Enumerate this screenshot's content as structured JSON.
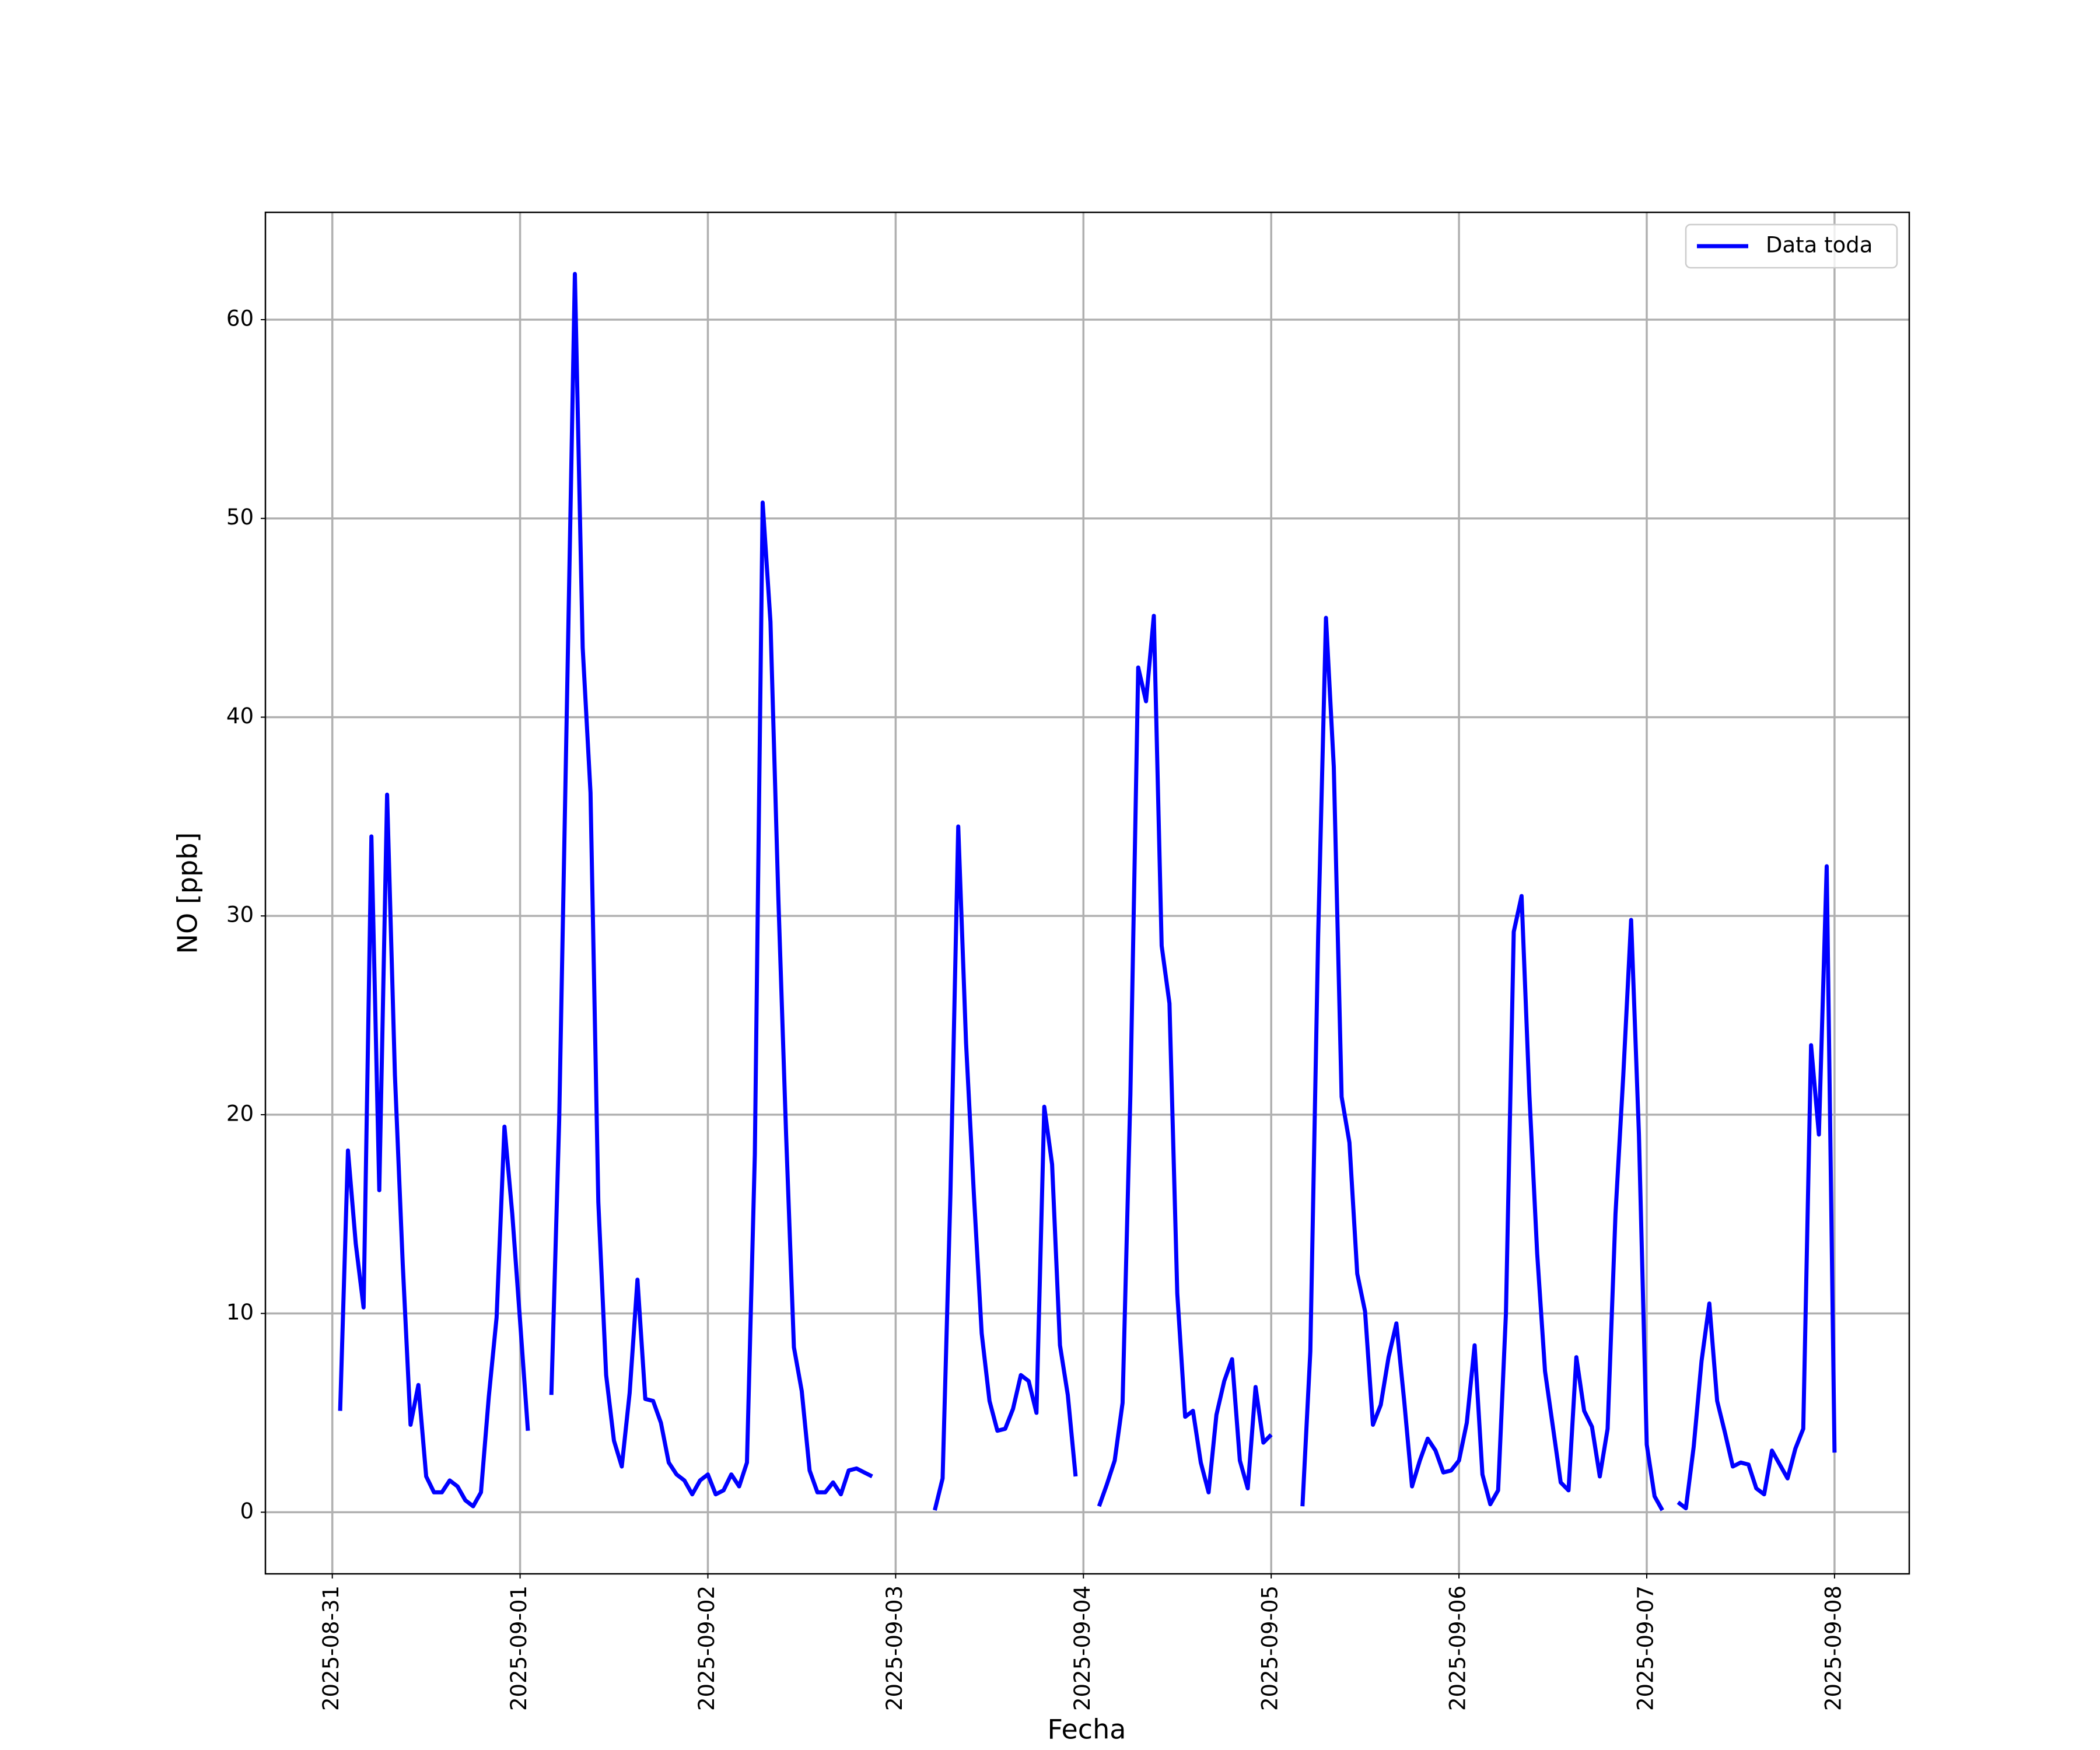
{
  "chart_data": {
    "type": "line",
    "xlabel": "Fecha",
    "ylabel": "NO [ppb]",
    "x": [
      "2025-08-31 01:00",
      "2025-08-31 02:00",
      "2025-08-31 03:00",
      "2025-08-31 04:00",
      "2025-08-31 05:00",
      "2025-08-31 06:00",
      "2025-08-31 07:00",
      "2025-08-31 08:00",
      "2025-08-31 09:00",
      "2025-08-31 10:00",
      "2025-08-31 11:00",
      "2025-08-31 12:00",
      "2025-08-31 13:00",
      "2025-08-31 14:00",
      "2025-08-31 15:00",
      "2025-08-31 16:00",
      "2025-08-31 17:00",
      "2025-08-31 18:00",
      "2025-08-31 19:00",
      "2025-08-31 20:00",
      "2025-08-31 21:00",
      "2025-08-31 22:00",
      "2025-08-31 23:00",
      "2025-09-01 00:00",
      "2025-09-01 01:00",
      "2025-09-01 02:00",
      "2025-09-01 03:00",
      "2025-09-01 04:00",
      "2025-09-01 05:00",
      "2025-09-01 06:00",
      "2025-09-01 07:00",
      "2025-09-01 08:00",
      "2025-09-01 09:00",
      "2025-09-01 10:00",
      "2025-09-01 11:00",
      "2025-09-01 12:00",
      "2025-09-01 13:00",
      "2025-09-01 14:00",
      "2025-09-01 15:00",
      "2025-09-01 16:00",
      "2025-09-01 17:00",
      "2025-09-01 18:00",
      "2025-09-01 19:00",
      "2025-09-01 20:00",
      "2025-09-01 21:00",
      "2025-09-01 22:00",
      "2025-09-01 23:00",
      "2025-09-02 00:00",
      "2025-09-02 01:00",
      "2025-09-02 02:00",
      "2025-09-02 03:00",
      "2025-09-02 04:00",
      "2025-09-02 05:00",
      "2025-09-02 06:00",
      "2025-09-02 07:00",
      "2025-09-02 08:00",
      "2025-09-02 09:00",
      "2025-09-02 10:00",
      "2025-09-02 11:00",
      "2025-09-02 12:00",
      "2025-09-02 13:00",
      "2025-09-02 14:00",
      "2025-09-02 15:00",
      "2025-09-02 16:00",
      "2025-09-02 17:00",
      "2025-09-02 18:00",
      "2025-09-02 19:00",
      "2025-09-02 20:00",
      "2025-09-02 21:00",
      "2025-09-02 22:00",
      "2025-09-02 23:00",
      "2025-09-03 00:00",
      "2025-09-03 01:00",
      "2025-09-03 02:00",
      "2025-09-03 03:00",
      "2025-09-03 04:00",
      "2025-09-03 05:00",
      "2025-09-03 06:00",
      "2025-09-03 07:00",
      "2025-09-03 08:00",
      "2025-09-03 09:00",
      "2025-09-03 10:00",
      "2025-09-03 11:00",
      "2025-09-03 12:00",
      "2025-09-03 13:00",
      "2025-09-03 14:00",
      "2025-09-03 15:00",
      "2025-09-03 16:00",
      "2025-09-03 17:00",
      "2025-09-03 18:00",
      "2025-09-03 19:00",
      "2025-09-03 20:00",
      "2025-09-03 21:00",
      "2025-09-03 22:00",
      "2025-09-03 23:00",
      "2025-09-04 00:00",
      "2025-09-04 01:00",
      "2025-09-04 02:00",
      "2025-09-04 03:00",
      "2025-09-04 04:00",
      "2025-09-04 05:00",
      "2025-09-04 06:00",
      "2025-09-04 07:00",
      "2025-09-04 08:00",
      "2025-09-04 09:00",
      "2025-09-04 10:00",
      "2025-09-04 11:00",
      "2025-09-04 12:00",
      "2025-09-04 13:00",
      "2025-09-04 14:00",
      "2025-09-04 15:00",
      "2025-09-04 16:00",
      "2025-09-04 17:00",
      "2025-09-04 18:00",
      "2025-09-04 19:00",
      "2025-09-04 20:00",
      "2025-09-04 21:00",
      "2025-09-04 22:00",
      "2025-09-04 23:00",
      "2025-09-05 00:00",
      "2025-09-05 01:00",
      "2025-09-05 02:00",
      "2025-09-05 03:00",
      "2025-09-05 04:00",
      "2025-09-05 05:00",
      "2025-09-05 06:00",
      "2025-09-05 07:00",
      "2025-09-05 08:00",
      "2025-09-05 09:00",
      "2025-09-05 10:00",
      "2025-09-05 11:00",
      "2025-09-05 12:00",
      "2025-09-05 13:00",
      "2025-09-05 14:00",
      "2025-09-05 15:00",
      "2025-09-05 16:00",
      "2025-09-05 17:00",
      "2025-09-05 18:00",
      "2025-09-05 19:00",
      "2025-09-05 20:00",
      "2025-09-05 21:00",
      "2025-09-05 22:00",
      "2025-09-05 23:00",
      "2025-09-06 00:00",
      "2025-09-06 01:00",
      "2025-09-06 02:00",
      "2025-09-06 03:00",
      "2025-09-06 04:00",
      "2025-09-06 05:00",
      "2025-09-06 06:00",
      "2025-09-06 07:00",
      "2025-09-06 08:00",
      "2025-09-06 09:00",
      "2025-09-06 10:00",
      "2025-09-06 11:00",
      "2025-09-06 12:00",
      "2025-09-06 13:00",
      "2025-09-06 14:00",
      "2025-09-06 15:00",
      "2025-09-06 16:00",
      "2025-09-06 17:00",
      "2025-09-06 18:00",
      "2025-09-06 19:00",
      "2025-09-06 20:00",
      "2025-09-06 21:00",
      "2025-09-06 22:00",
      "2025-09-06 23:00",
      "2025-09-07 00:00",
      "2025-09-07 01:00",
      "2025-09-07 02:00",
      "2025-09-07 03:00",
      "2025-09-07 04:00",
      "2025-09-07 05:00",
      "2025-09-07 06:00",
      "2025-09-07 07:00",
      "2025-09-07 08:00",
      "2025-09-07 09:00",
      "2025-09-07 10:00",
      "2025-09-07 11:00",
      "2025-09-07 12:00",
      "2025-09-07 13:00",
      "2025-09-07 14:00",
      "2025-09-07 15:00",
      "2025-09-07 16:00",
      "2025-09-07 17:00",
      "2025-09-07 18:00",
      "2025-09-07 19:00",
      "2025-09-07 20:00",
      "2025-09-07 21:00",
      "2025-09-07 22:00",
      "2025-09-07 23:00",
      "2025-09-08 00:00"
    ],
    "series": [
      {
        "name": "Data toda",
        "color": "#0000ff",
        "values": [
          5.1,
          18.2,
          13.5,
          10.3,
          34.0,
          16.2,
          36.1,
          22,
          12.5,
          4.4,
          6.4,
          1.8,
          1.0,
          1.0,
          1.6,
          1.3,
          0.6,
          0.3,
          1.0,
          5.8,
          9.8,
          19.4,
          15.0,
          9.6,
          4.1,
          null,
          null,
          5.9,
          19.7,
          41,
          62.3,
          43.5,
          36.2,
          15.6,
          6.9,
          3.6,
          2.3,
          6.0,
          11.7,
          5.7,
          5.6,
          4.5,
          2.5,
          1.9,
          1.6,
          0.9,
          1.6,
          1.9,
          0.9,
          1.1,
          1.9,
          1.3,
          2.5,
          18,
          50.8,
          44.8,
          31,
          19,
          8.3,
          6.1,
          2.1,
          1.0,
          1.0,
          1.5,
          0.9,
          2.1,
          2.2,
          2.0,
          1.8,
          null,
          null,
          null,
          null,
          null,
          null,
          null,
          0.1,
          1.7,
          16,
          34.5,
          23.6,
          16,
          9.0,
          5.6,
          4.1,
          4.2,
          5.2,
          6.9,
          6.6,
          5.0,
          20.4,
          17.5,
          8.4,
          5.9,
          1.8,
          null,
          null,
          0.3,
          1.4,
          2.6,
          5.5,
          21,
          42.5,
          40.8,
          45.1,
          28.5,
          25.6,
          11,
          4.8,
          5.1,
          2.5,
          1.0,
          4.9,
          6.6,
          7.7,
          2.6,
          1.2,
          6.3,
          3.5,
          3.9,
          null,
          null,
          null,
          0.3,
          8.1,
          29,
          45.0,
          37.5,
          20.9,
          18.6,
          12,
          10.1,
          4.4,
          5.4,
          7.8,
          9.5,
          5.6,
          1.3,
          2.6,
          3.7,
          3.1,
          2.0,
          2.1,
          2.6,
          4.5,
          8.4,
          1.9,
          0.4,
          1.1,
          10,
          29.2,
          31.0,
          21,
          13,
          7.1,
          4.3,
          1.5,
          1.1,
          7.8,
          5.1,
          4.3,
          1.8,
          4.2,
          15,
          22,
          29.8,
          19,
          3.4,
          0.8,
          0.1,
          null,
          0.5,
          0.2,
          3.3,
          7.6,
          10.5,
          5.6,
          4.0,
          2.3,
          2.5,
          2.4,
          1.2,
          0.9,
          3.1,
          2.4,
          1.7,
          3.2,
          4.2,
          23.5,
          19.0,
          32.5,
          3.0
        ]
      }
    ],
    "xlim": [
      "2025-08-30 15:27",
      "2025-09-08 09:33"
    ],
    "xticks": [
      "2025-08-31",
      "2025-09-01",
      "2025-09-02",
      "2025-09-03",
      "2025-09-04",
      "2025-09-05",
      "2025-09-06",
      "2025-09-07",
      "2025-09-08"
    ],
    "ylim": [
      -3.1,
      65.4
    ],
    "yticks": [
      0,
      10,
      20,
      30,
      40,
      50,
      60
    ],
    "grid": true,
    "legend": "upper right"
  }
}
